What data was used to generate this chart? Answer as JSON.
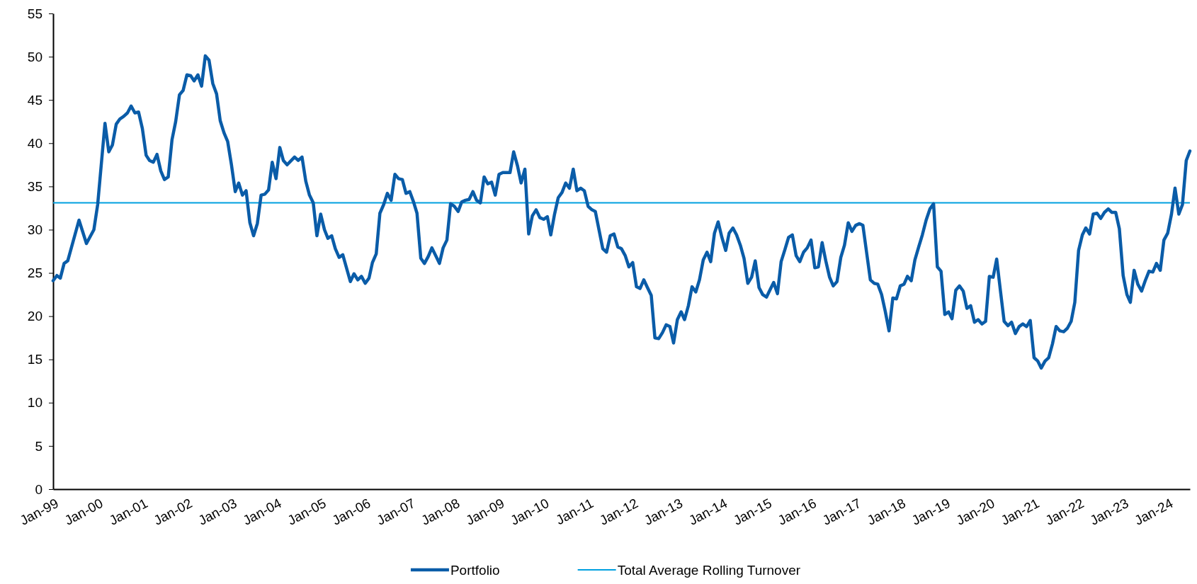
{
  "chart_data": {
    "type": "line",
    "x": [
      "1999-01",
      "1999-02",
      "1999-03",
      "1999-04",
      "1999-05",
      "1999-08",
      "1999-10",
      "1999-12",
      "2000-01",
      "2000-03",
      "2000-04",
      "2000-05",
      "2000-06",
      "2000-07",
      "2000-08",
      "2000-09",
      "2000-10",
      "2000-11",
      "2000-12",
      "2001-01",
      "2001-02",
      "2001-03",
      "2001-04",
      "2001-05",
      "2001-06",
      "2001-07",
      "2001-08",
      "2001-09",
      "2001-10",
      "2001-11",
      "2001-12",
      "2002-01",
      "2002-02",
      "2002-03",
      "2002-04",
      "2002-05",
      "2002-06",
      "2002-07",
      "2002-08",
      "2002-09",
      "2002-10",
      "2002-11",
      "2002-12",
      "2003-01",
      "2003-02",
      "2003-03",
      "2003-04",
      "2003-05",
      "2003-06",
      "2003-07",
      "2003-08",
      "2003-09",
      "2003-10",
      "2003-11",
      "2003-12",
      "2004-01",
      "2004-02",
      "2004-03",
      "2004-04",
      "2004-06",
      "2004-07",
      "2004-08",
      "2004-09",
      "2004-10",
      "2004-11",
      "2004-12",
      "2005-01",
      "2005-02",
      "2005-03",
      "2005-04",
      "2005-05",
      "2005-06",
      "2005-07",
      "2005-09",
      "2005-10",
      "2005-11",
      "2005-12",
      "2006-01",
      "2006-02",
      "2006-03",
      "2006-04",
      "2006-05",
      "2006-06",
      "2006-07",
      "2006-08",
      "2006-09",
      "2006-10",
      "2006-11",
      "2006-12",
      "2007-01",
      "2007-02",
      "2007-03",
      "2007-04",
      "2007-05",
      "2007-06",
      "2007-07",
      "2007-09",
      "2007-10",
      "2007-11",
      "2007-12",
      "2008-01",
      "2008-02",
      "2008-03",
      "2008-04",
      "2008-05",
      "2008-06",
      "2008-07",
      "2008-08",
      "2008-09",
      "2008-10",
      "2008-11",
      "2008-12",
      "2009-01",
      "2009-02",
      "2009-04",
      "2009-05",
      "2009-06",
      "2009-07",
      "2009-08",
      "2009-09",
      "2009-10",
      "2009-11",
      "2009-12",
      "2010-01",
      "2010-02",
      "2010-03",
      "2010-04",
      "2010-05",
      "2010-06",
      "2010-07",
      "2010-08",
      "2010-09",
      "2010-10",
      "2010-11",
      "2010-12",
      "2011-01",
      "2011-02",
      "2011-03",
      "2011-05",
      "2011-06",
      "2011-07",
      "2011-08",
      "2011-09",
      "2011-10",
      "2011-11",
      "2011-12",
      "2012-01",
      "2012-02",
      "2012-03",
      "2012-04",
      "2012-05",
      "2012-06",
      "2012-07",
      "2012-08",
      "2012-09",
      "2012-10",
      "2012-11",
      "2012-12",
      "2013-01",
      "2013-02",
      "2013-03",
      "2013-04",
      "2013-05",
      "2013-06",
      "2013-07",
      "2013-08",
      "2013-09",
      "2013-10",
      "2013-11",
      "2013-12",
      "2014-01",
      "2014-02",
      "2014-03",
      "2014-04",
      "2014-05",
      "2014-06",
      "2014-07",
      "2014-08",
      "2014-09",
      "2014-10",
      "2014-11",
      "2014-12",
      "2015-01",
      "2015-02",
      "2015-03",
      "2015-04",
      "2015-05",
      "2015-06",
      "2015-07",
      "2015-08",
      "2015-09",
      "2015-10",
      "2015-11",
      "2015-12",
      "2016-01",
      "2016-02",
      "2016-03",
      "2016-04",
      "2016-05",
      "2016-06",
      "2016-07",
      "2016-08",
      "2016-09",
      "2016-10",
      "2016-11",
      "2016-12",
      "2017-01",
      "2017-02",
      "2017-03",
      "2017-04",
      "2017-05",
      "2017-06",
      "2017-07",
      "2017-08",
      "2017-09",
      "2017-10",
      "2017-11",
      "2017-12",
      "2018-01",
      "2018-02",
      "2018-03",
      "2018-04",
      "2018-05",
      "2018-06",
      "2018-07",
      "2018-08",
      "2018-09",
      "2018-10",
      "2018-11",
      "2018-12",
      "2019-01",
      "2019-02",
      "2019-03",
      "2019-04",
      "2019-05",
      "2019-06",
      "2019-07",
      "2019-08",
      "2019-09",
      "2019-10",
      "2019-11",
      "2019-12",
      "2020-01",
      "2020-02",
      "2020-03",
      "2020-04",
      "2020-05",
      "2020-06",
      "2020-07",
      "2020-08",
      "2020-09",
      "2020-10",
      "2020-11",
      "2020-12",
      "2021-01",
      "2021-02",
      "2021-03",
      "2021-04",
      "2021-05",
      "2021-06",
      "2021-07",
      "2021-08",
      "2021-09",
      "2021-10",
      "2021-11",
      "2021-12",
      "2022-01",
      "2022-02",
      "2022-03",
      "2022-04",
      "2022-05",
      "2022-06",
      "2022-07",
      "2022-08",
      "2022-09",
      "2022-10",
      "2022-11",
      "2022-12",
      "2023-01",
      "2023-02",
      "2023-03",
      "2023-04",
      "2023-05",
      "2023-06",
      "2023-07",
      "2023-08",
      "2023-09",
      "2023-10",
      "2023-11",
      "2023-12",
      "2024-01",
      "2024-02",
      "2024-03",
      "2024-04",
      "2024-05",
      "2024-06",
      "2024-07"
    ],
    "series": [
      {
        "name": "Portfolio",
        "color": "#0a5ca8",
        "values": [
          24.1,
          24.7,
          24.4,
          26.1,
          26.4,
          31.1,
          28.4,
          30.0,
          32.9,
          42.3,
          39.0,
          39.8,
          42.2,
          42.8,
          43.1,
          43.5,
          44.3,
          43.5,
          43.6,
          41.7,
          38.6,
          38.0,
          37.8,
          38.7,
          36.8,
          35.8,
          36.1,
          40.4,
          42.5,
          45.6,
          46.1,
          47.9,
          47.8,
          47.2,
          47.9,
          46.6,
          50.1,
          49.6,
          46.9,
          45.7,
          42.6,
          41.2,
          40.2,
          37.5,
          34.4,
          35.4,
          34.0,
          34.5,
          30.8,
          29.3,
          30.7,
          34.0,
          34.1,
          34.6,
          37.8,
          35.9,
          39.5,
          38.0,
          37.5,
          38.4,
          38.0,
          38.4,
          35.6,
          34.0,
          33.1,
          29.3,
          31.8,
          30.0,
          29.0,
          29.3,
          27.8,
          26.8,
          27.1,
          24.0,
          24.9,
          24.2,
          24.6,
          23.8,
          24.4,
          26.2,
          27.2,
          31.9,
          32.9,
          34.2,
          33.4,
          36.4,
          35.9,
          35.8,
          34.2,
          34.4,
          33.2,
          31.9,
          26.7,
          26.1,
          26.9,
          27.9,
          26.1,
          27.9,
          28.8,
          33.0,
          32.7,
          32.1,
          33.2,
          33.4,
          33.5,
          34.4,
          33.4,
          33.1,
          36.1,
          35.3,
          35.5,
          34.0,
          36.4,
          36.6,
          36.6,
          39.0,
          37.4,
          35.4,
          37.0,
          29.5,
          31.6,
          32.3,
          31.4,
          31.2,
          31.5,
          29.4,
          31.8,
          33.7,
          34.3,
          35.4,
          34.8,
          37.0,
          34.5,
          34.8,
          34.5,
          32.7,
          32.3,
          32.1,
          27.8,
          27.4,
          29.3,
          29.5,
          28.0,
          27.8,
          27.0,
          25.7,
          26.2,
          23.4,
          23.2,
          24.2,
          23.3,
          22.4,
          17.5,
          17.4,
          18.1,
          19.0,
          18.8,
          16.9,
          19.6,
          20.5,
          19.6,
          21.2,
          23.4,
          22.8,
          24.2,
          26.5,
          27.4,
          26.3,
          29.6,
          30.9,
          29.1,
          27.6,
          29.6,
          30.2,
          29.4,
          28.2,
          26.7,
          23.8,
          24.5,
          26.4,
          23.3,
          22.5,
          22.2,
          23.1,
          23.9,
          22.6,
          26.3,
          27.7,
          29.1,
          29.4,
          27.0,
          26.3,
          27.4,
          27.9,
          28.8,
          25.6,
          25.7,
          28.5,
          26.4,
          24.5,
          23.5,
          24.0,
          26.8,
          28.2,
          30.8,
          29.8,
          30.5,
          30.7,
          30.5,
          27.3,
          24.2,
          23.8,
          23.7,
          22.5,
          20.5,
          18.3,
          22.1,
          22.0,
          23.5,
          23.7,
          24.6,
          24.1,
          26.5,
          28.0,
          29.4,
          31.1,
          32.4,
          33.0,
          25.7,
          25.2,
          20.2,
          20.5,
          19.7,
          23.0,
          23.5,
          22.9,
          20.9,
          21.2,
          19.3,
          19.6,
          19.1,
          19.4,
          24.6,
          24.5,
          26.6,
          22.9,
          19.4,
          18.9,
          19.3,
          18.0,
          18.8,
          19.1,
          18.8,
          19.5,
          15.2,
          14.8,
          14.0,
          14.8,
          15.2,
          16.8,
          18.8,
          18.3,
          18.2,
          18.6,
          19.4,
          21.6,
          27.6,
          29.4,
          30.2,
          29.5,
          31.8,
          31.9,
          31.3,
          32.0,
          32.4,
          32.0,
          32.0,
          30.1,
          24.7,
          22.5,
          21.6,
          25.3,
          23.7,
          22.9,
          24.1,
          25.2,
          25.1,
          26.1,
          25.3,
          28.8,
          29.6,
          31.8,
          34.8,
          31.8,
          32.9,
          38.0,
          39.1
        ]
      }
    ],
    "xlim": [
      "1999-01",
      "2024-07"
    ],
    "xticks": [
      {
        "value": "1999-01",
        "label": "Jan-99"
      },
      {
        "value": "2000-01",
        "label": "Jan-00"
      },
      {
        "value": "2001-01",
        "label": "Jan-01"
      },
      {
        "value": "2002-01",
        "label": "Jan-02"
      },
      {
        "value": "2003-01",
        "label": "Jan-03"
      },
      {
        "value": "2004-01",
        "label": "Jan-04"
      },
      {
        "value": "2005-01",
        "label": "Jan-05"
      },
      {
        "value": "2006-01",
        "label": "Jan-06"
      },
      {
        "value": "2007-01",
        "label": "Jan-07"
      },
      {
        "value": "2008-01",
        "label": "Jan-08"
      },
      {
        "value": "2009-01",
        "label": "Jan-09"
      },
      {
        "value": "2010-01",
        "label": "Jan-10"
      },
      {
        "value": "2011-01",
        "label": "Jan-11"
      },
      {
        "value": "2012-01",
        "label": "Jan-12"
      },
      {
        "value": "2013-01",
        "label": "Jan-13"
      },
      {
        "value": "2014-01",
        "label": "Jan-14"
      },
      {
        "value": "2015-01",
        "label": "Jan-15"
      },
      {
        "value": "2016-01",
        "label": "Jan-16"
      },
      {
        "value": "2017-01",
        "label": "Jan-17"
      },
      {
        "value": "2018-01",
        "label": "Jan-18"
      },
      {
        "value": "2019-01",
        "label": "Jan-19"
      },
      {
        "value": "2020-01",
        "label": "Jan-20"
      },
      {
        "value": "2021-01",
        "label": "Jan-21"
      },
      {
        "value": "2022-01",
        "label": "Jan-22"
      },
      {
        "value": "2023-01",
        "label": "Jan-23"
      },
      {
        "value": "2024-01",
        "label": "Jan-24"
      }
    ],
    "ylim": [
      0,
      55
    ],
    "yticks": [
      0,
      5,
      10,
      15,
      20,
      25,
      30,
      35,
      40,
      45,
      50,
      55
    ],
    "ref_lines": [
      {
        "axis": "y",
        "value": 33.1,
        "label": "Total Average Rolling Turnover",
        "color": "#00a0e0"
      }
    ],
    "legend": "bottom"
  }
}
